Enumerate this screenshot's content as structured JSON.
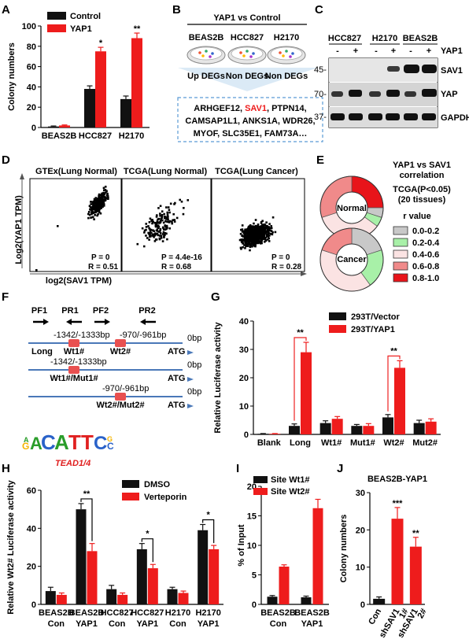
{
  "panels": [
    "A",
    "B",
    "C",
    "D",
    "E",
    "F",
    "G",
    "H",
    "I",
    "J"
  ],
  "colors": {
    "black": "#111111",
    "red": "#ee1c1c",
    "bracket_red": "#ee2222"
  },
  "chart_data": [
    {
      "id": "A",
      "type": "bar",
      "ylabel": "Colony numbers",
      "categories": [
        "BEAS2B",
        "HCC827",
        "H2170"
      ],
      "ylim": [
        0,
        100
      ],
      "yticks": [
        0,
        20,
        40,
        60,
        80,
        100
      ],
      "series": [
        {
          "name": "Control",
          "values": [
            1,
            38,
            28
          ],
          "errors": [
            0.5,
            3,
            3
          ]
        },
        {
          "name": "YAP1",
          "values": [
            2,
            75,
            88
          ],
          "errors": [
            0.5,
            4,
            5
          ]
        }
      ],
      "significance": [
        "",
        "*",
        "**"
      ]
    },
    {
      "id": "G",
      "type": "bar",
      "ylabel": "Relative Luciferase activity",
      "categories": [
        "Blank",
        "Long",
        "Wt1#",
        "Mut1#",
        "Wt2#",
        "Mut2#"
      ],
      "ylim": [
        0,
        40
      ],
      "yticks": [
        0,
        10,
        20,
        30,
        40
      ],
      "series": [
        {
          "name": "293T/Vector",
          "values": [
            0.2,
            3,
            4,
            3,
            6,
            4
          ],
          "errors": [
            0.1,
            0.7,
            0.8,
            0.5,
            1,
            1
          ]
        },
        {
          "name": "293T/YAP1",
          "values": [
            0.2,
            29,
            5.5,
            3,
            23.5,
            4.5
          ],
          "errors": [
            0.1,
            3.5,
            0.8,
            0.8,
            2.5,
            1
          ]
        }
      ],
      "significance": [
        "",
        "**",
        "",
        "",
        "**",
        ""
      ]
    },
    {
      "id": "H",
      "type": "bar",
      "ylabel": "Relative Wt2# Luciferase activity",
      "categories": [
        "BEAS2B Con",
        "BEAS2B YAP1",
        "HCC827 Con",
        "HCC827 YAP1",
        "H2170 Con",
        "H2170 YAP1"
      ],
      "ylim": [
        0,
        60
      ],
      "yticks": [
        0,
        20,
        40,
        60
      ],
      "series": [
        {
          "name": "DMSO",
          "values": [
            7,
            50,
            8,
            29,
            8,
            39
          ],
          "errors": [
            2,
            3,
            2,
            3,
            1,
            3
          ]
        },
        {
          "name": "Verteporin",
          "values": [
            5,
            28,
            5,
            19,
            6,
            29
          ],
          "errors": [
            1,
            4,
            1,
            2,
            1,
            2
          ]
        }
      ],
      "significance": [
        "",
        "**",
        "",
        "*",
        "",
        "*"
      ]
    },
    {
      "id": "I",
      "type": "bar",
      "ylabel": "% of Input",
      "categories": [
        "BEAS2B Con",
        "BEAS2B YAP1"
      ],
      "ylim": [
        0,
        20
      ],
      "yticks": [
        0,
        5,
        10,
        15,
        20
      ],
      "series": [
        {
          "name": "Site Wt1#",
          "values": [
            1.3,
            1.2
          ],
          "errors": [
            0.2,
            0.2
          ]
        },
        {
          "name": "Site Wt2#",
          "values": [
            6.4,
            16.3
          ],
          "errors": [
            0.3,
            1.5
          ]
        }
      ]
    },
    {
      "id": "J",
      "type": "bar",
      "title": "BEAS2B-YAP1",
      "ylabel": "Colony numbers",
      "categories": [
        "Con",
        "shSAV1 1#",
        "shSAV1 2#"
      ],
      "ylim": [
        0,
        30
      ],
      "yticks": [
        0,
        10,
        20,
        30
      ],
      "series": [
        {
          "name": "",
          "values": [
            1.5,
            23,
            15.5
          ],
          "errors": [
            0.5,
            3,
            2.5
          ]
        }
      ],
      "significance": [
        "",
        "***",
        "**"
      ]
    }
  ],
  "panelB": {
    "title": "YAP1 vs Control",
    "cells": [
      "BEAS2B",
      "HCC827",
      "H2170"
    ],
    "degs": [
      "Up DEGs",
      "Non DEGs",
      "Non DEGs"
    ],
    "genes_line1_pre": "ARHGEF12, ",
    "genes_line1_red": "SAV1",
    "genes_line1_post": ", PTPN14,",
    "genes_line2": "CAMSAP1L1, ANKS1A, WDR26,",
    "genes_line3": "MYOF, SLC35E1, FAM73A…"
  },
  "panelC": {
    "cells": [
      "HCC827",
      "H2170",
      "BEAS2B"
    ],
    "treatment": [
      "-",
      "+",
      "-",
      "+",
      "-",
      "+"
    ],
    "treatment_label": "YAP1",
    "markers": [
      "45-",
      "70-",
      "37-"
    ],
    "bands": [
      "SAV1",
      "YAP",
      "GAPDH"
    ]
  },
  "panelD": {
    "titles": [
      "GTEx(Lung Normal)",
      "TCGA(Lung Normal)",
      "TCGA(Lung Cancer)"
    ],
    "ylabel": "Log2(YAP1 TPM)",
    "xlabel": "log2(SAV1 TPM)",
    "stats": [
      {
        "p": "P = 0",
        "r": "R = 0.51"
      },
      {
        "p": "P = 4.4e-16",
        "r": "R = 0.68"
      },
      {
        "p": "P = 0",
        "r": "R = 0.28"
      }
    ]
  },
  "panelE": {
    "title1": "YAP1 vs SAV1",
    "title2": "correlation",
    "sub1": "TCGA(P<0.05)",
    "sub2": "(20 tissues)",
    "rvalue": "r value",
    "donuts": [
      "Normal",
      "Cancer"
    ],
    "legend": [
      {
        "label": "0.0-0.2",
        "color": "#c8c8c8"
      },
      {
        "label": "0.2-0.4",
        "color": "#a8f0a8"
      },
      {
        "label": "0.4-0.6",
        "color": "#fbe3e3"
      },
      {
        "label": "0.6-0.8",
        "color": "#f08a8a"
      },
      {
        "label": "0.8-1.0",
        "color": "#e8141a"
      }
    ],
    "normal_segments": [
      {
        "value": 5,
        "color": "#e8141a"
      },
      {
        "value": 1,
        "color": "#c8c8c8"
      },
      {
        "value": 1,
        "color": "#a8f0a8"
      },
      {
        "value": 7,
        "color": "#fbe3e3"
      },
      {
        "value": 6,
        "color": "#f08a8a"
      }
    ],
    "cancer_segments": [
      {
        "value": 4,
        "color": "#c8c8c8"
      },
      {
        "value": 4,
        "color": "#a8f0a8"
      },
      {
        "value": 8,
        "color": "#fbe3e3"
      },
      {
        "value": 4,
        "color": "#f08a8a"
      }
    ]
  },
  "panelF": {
    "primers": [
      "PF1",
      "PR1",
      "PF2",
      "PR2"
    ],
    "row1_left": "-1342/-1333bp",
    "row1_right": "-970/-961bp",
    "long": "Long",
    "wt1": "Wt1#",
    "wt2": "Wt2#",
    "bp0": "0bp",
    "atg": "ATG",
    "row2_pos": "-1342/-1333bp",
    "row2_label": "Wt1#/Mut1#",
    "row3_pos": "-970/-961bp",
    "row3_label": "Wt2#/Mut2#",
    "motif_label": "TEAD1/4"
  }
}
